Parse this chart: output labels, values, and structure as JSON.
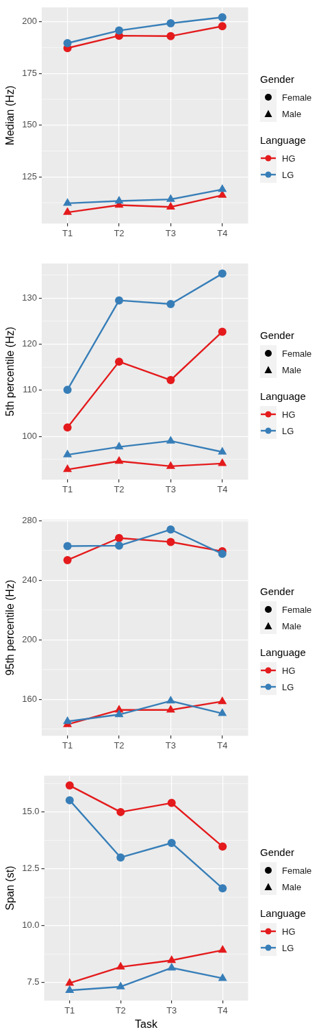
{
  "chart_data": [
    {
      "type": "line",
      "ylabel": "Median (Hz)",
      "categories": [
        "T1",
        "T2",
        "T3",
        "T4"
      ],
      "ylim": [
        102.4,
        207
      ],
      "yticks": [
        125,
        150,
        175,
        200
      ],
      "grid": true,
      "legend": "right",
      "legend_title": "Language",
      "annotations": [
        "Gender",
        "Female",
        "Male"
      ],
      "series": [
        {
          "name": "HG",
          "color": "#e41a1c",
          "marker": "circle",
          "values": [
            187.3,
            193.3,
            193.1,
            197.9
          ]
        },
        {
          "name": "LG",
          "color": "#377eb8",
          "marker": "circle",
          "values": [
            189.7,
            195.8,
            199.3,
            202.2
          ]
        },
        {
          "color": "#e41a1c",
          "marker": "triangle",
          "values": [
            107.8,
            111.3,
            110.4,
            116.1
          ]
        },
        {
          "color": "#377eb8",
          "marker": "triangle",
          "values": [
            112.2,
            113.3,
            114.1,
            118.9
          ]
        }
      ]
    },
    {
      "type": "line",
      "ylabel": "5th percentile (Hz)",
      "categories": [
        "T1",
        "T2",
        "T3",
        "T4"
      ],
      "ylim": [
        90.6,
        137.5
      ],
      "yticks": [
        100,
        110,
        120,
        130
      ],
      "grid": true,
      "legend": "right",
      "legend_title": "Language",
      "annotations": [
        "Gender",
        "Female",
        "Male"
      ],
      "series": [
        {
          "name": "HG",
          "color": "#e41a1c",
          "marker": "circle",
          "values": [
            101.9,
            116.2,
            112.2,
            122.7
          ]
        },
        {
          "name": "LG",
          "color": "#377eb8",
          "marker": "circle",
          "values": [
            110.1,
            129.5,
            128.7,
            135.3
          ]
        },
        {
          "color": "#e41a1c",
          "marker": "triangle",
          "values": [
            92.8,
            94.6,
            93.5,
            94.1
          ]
        },
        {
          "color": "#377eb8",
          "marker": "triangle",
          "values": [
            96.0,
            97.7,
            99.0,
            96.6
          ]
        }
      ]
    },
    {
      "type": "line",
      "ylabel": "95th percentile (Hz)",
      "categories": [
        "T1",
        "T2",
        "T3",
        "T4"
      ],
      "ylim": [
        135.5,
        280.7
      ],
      "yticks": [
        160,
        200,
        240,
        280
      ],
      "grid": true,
      "legend": "right",
      "legend_title": "Language",
      "annotations": [
        "Gender",
        "Female",
        "Male"
      ],
      "series": [
        {
          "name": "HG",
          "color": "#e41a1c",
          "marker": "circle",
          "values": [
            253.5,
            268.3,
            265.7,
            259.4
          ]
        },
        {
          "name": "LG",
          "color": "#377eb8",
          "marker": "circle",
          "values": [
            262.9,
            263.2,
            274.0,
            257.7
          ]
        },
        {
          "color": "#e41a1c",
          "marker": "triangle",
          "values": [
            143.1,
            152.8,
            152.8,
            158.5
          ]
        },
        {
          "color": "#377eb8",
          "marker": "triangle",
          "values": [
            145.1,
            149.7,
            158.9,
            150.5
          ]
        }
      ]
    },
    {
      "type": "line",
      "ylabel": "Span (st)",
      "xlabel": "Task",
      "categories": [
        "T1",
        "T2",
        "T3",
        "T4"
      ],
      "ylim": [
        6.7,
        16.6
      ],
      "yticks": [
        {
          "value": 7.5,
          "label": "7.5"
        },
        {
          "value": 10,
          "label": "10.0"
        },
        {
          "value": 12.5,
          "label": "12.5"
        },
        {
          "value": 15,
          "label": "15.0"
        }
      ],
      "grid": true,
      "legend": "right",
      "legend_title": "Language",
      "annotations": [
        "Gender",
        "Female",
        "Male"
      ],
      "series": [
        {
          "name": "HG",
          "color": "#e41a1c",
          "marker": "circle",
          "values": [
            16.17,
            15.0,
            15.4,
            13.48
          ]
        },
        {
          "name": "LG",
          "color": "#377eb8",
          "marker": "circle",
          "values": [
            15.52,
            13.0,
            13.64,
            11.64
          ]
        },
        {
          "color": "#e41a1c",
          "marker": "triangle",
          "values": [
            7.47,
            8.18,
            8.47,
            8.92
          ]
        },
        {
          "color": "#377eb8",
          "marker": "triangle",
          "values": [
            7.15,
            7.31,
            8.14,
            7.68
          ]
        }
      ]
    }
  ]
}
